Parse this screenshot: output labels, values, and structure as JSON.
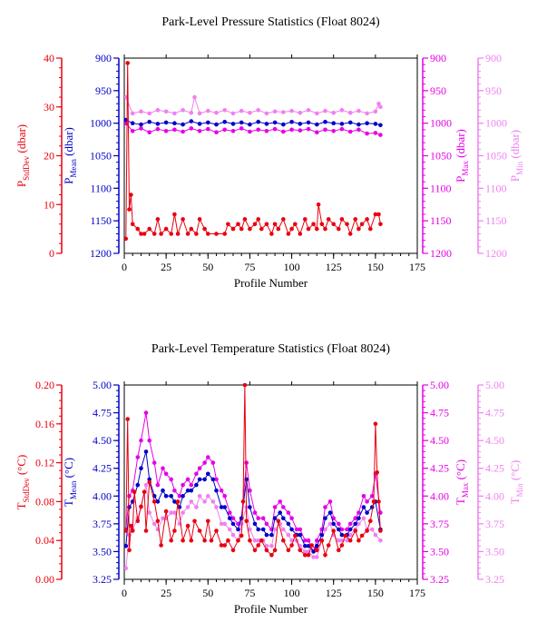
{
  "chart_data": [
    {
      "type": "line",
      "title": "Park-Level Pressure Statistics (Float 8024)",
      "xlabel": "Profile Number",
      "x_ticks": [
        "0",
        "25",
        "50",
        "75",
        "100",
        "125",
        "150",
        "175"
      ],
      "xlim": [
        0,
        175
      ],
      "axes": [
        {
          "key": "sd",
          "label_main": "P",
          "label_sub": "StdDev",
          "label_unit": " (dbar)",
          "color": "#e8000f",
          "ylim": [
            0,
            40
          ],
          "reversed": false,
          "ticks": [
            "0",
            "10",
            "20",
            "30",
            "40"
          ]
        },
        {
          "key": "mean",
          "label_main": "P",
          "label_sub": "Mean",
          "label_unit": " (dbar)",
          "color": "#0000c8",
          "ylim": [
            900,
            1200
          ],
          "reversed": true,
          "ticks": [
            "900",
            "950",
            "1000",
            "1050",
            "1100",
            "1150",
            "1200"
          ]
        },
        {
          "key": "max",
          "label_main": "P",
          "label_sub": "Max",
          "label_unit": " (dbar)",
          "color": "#e600e6",
          "ylim": [
            900,
            1200
          ],
          "reversed": true,
          "ticks": [
            "900",
            "950",
            "1000",
            "1050",
            "1100",
            "1150",
            "1200"
          ]
        },
        {
          "key": "min",
          "label_main": "P",
          "label_sub": "Min",
          "label_unit": " (dbar)",
          "color": "#f080f0",
          "ylim": [
            900,
            1200
          ],
          "reversed": true,
          "ticks": [
            "900",
            "950",
            "1000",
            "1050",
            "1100",
            "1150",
            "1200"
          ]
        }
      ],
      "series": [
        {
          "axis": "min",
          "color": "#f080f0",
          "x": [
            1,
            5,
            10,
            15,
            20,
            25,
            30,
            35,
            40,
            42,
            45,
            50,
            55,
            60,
            65,
            70,
            75,
            80,
            85,
            90,
            95,
            100,
            105,
            110,
            115,
            120,
            125,
            130,
            135,
            140,
            145,
            150,
            152,
            153
          ],
          "y": [
            960,
            985,
            982,
            985,
            980,
            982,
            985,
            980,
            984,
            960,
            985,
            981,
            984,
            980,
            985,
            981,
            984,
            980,
            985,
            982,
            983,
            981,
            984,
            980,
            985,
            981,
            984,
            980,
            984,
            981,
            985,
            982,
            970,
            975
          ]
        },
        {
          "axis": "max",
          "color": "#e600e6",
          "x": [
            1,
            5,
            10,
            15,
            20,
            25,
            30,
            35,
            40,
            45,
            50,
            55,
            60,
            65,
            70,
            75,
            80,
            85,
            90,
            95,
            100,
            105,
            110,
            115,
            120,
            125,
            130,
            135,
            140,
            145,
            150,
            153
          ],
          "y": [
            1000,
            1012,
            1008,
            1014,
            1009,
            1012,
            1010,
            1013,
            1008,
            1012,
            1009,
            1014,
            1010,
            1012,
            1008,
            1013,
            1010,
            1012,
            1009,
            1013,
            1010,
            1011,
            1009,
            1014,
            1010,
            1012,
            1009,
            1013,
            1010,
            1016,
            1015,
            1018
          ]
        },
        {
          "axis": "mean",
          "color": "#0000c8",
          "x": [
            1,
            5,
            10,
            15,
            20,
            25,
            30,
            35,
            40,
            45,
            50,
            55,
            60,
            65,
            70,
            75,
            80,
            85,
            90,
            95,
            100,
            105,
            110,
            115,
            120,
            125,
            130,
            135,
            140,
            145,
            150,
            153
          ],
          "y": [
            995,
            1000,
            1002,
            998,
            1001,
            999,
            1000,
            1002,
            997,
            1001,
            999,
            1002,
            998,
            1001,
            999,
            1002,
            998,
            1001,
            999,
            1002,
            998,
            1001,
            999,
            1002,
            998,
            1000,
            1001,
            999,
            1002,
            1000,
            1001,
            1003
          ]
        },
        {
          "axis": "sd",
          "color": "#e8000f",
          "x": [
            1,
            2,
            3,
            4,
            5,
            8,
            10,
            12,
            15,
            18,
            20,
            22,
            25,
            28,
            30,
            32,
            35,
            38,
            40,
            43,
            45,
            48,
            50,
            55,
            60,
            62,
            65,
            68,
            70,
            72,
            75,
            78,
            80,
            82,
            85,
            88,
            90,
            92,
            95,
            98,
            100,
            102,
            105,
            108,
            110,
            113,
            115,
            116,
            118,
            120,
            122,
            125,
            128,
            130,
            133,
            135,
            138,
            140,
            142,
            145,
            147,
            150,
            152,
            153
          ],
          "y": [
            3,
            39,
            9,
            12,
            6,
            5,
            4,
            4,
            5,
            4,
            7,
            4,
            5,
            4,
            8,
            4,
            7,
            4,
            5,
            4,
            7,
            5,
            4,
            4,
            4,
            6,
            5,
            6,
            5,
            7,
            5,
            6,
            7,
            5,
            6,
            4,
            6,
            5,
            7,
            4,
            5,
            6,
            4,
            7,
            5,
            6,
            5,
            10,
            6,
            5,
            7,
            6,
            5,
            7,
            6,
            4,
            7,
            5,
            6,
            7,
            5,
            8,
            8,
            6
          ]
        }
      ]
    },
    {
      "type": "line",
      "title": "Park-Level Temperature Statistics (Float 8024)",
      "xlabel": "Profile Number",
      "x_ticks": [
        "0",
        "25",
        "50",
        "75",
        "100",
        "125",
        "150",
        "175"
      ],
      "xlim": [
        0,
        175
      ],
      "axes": [
        {
          "key": "sd",
          "label_main": "T",
          "label_sub": "StdDev",
          "label_unit": " (°C)",
          "color": "#e8000f",
          "ylim": [
            0,
            0.2
          ],
          "reversed": false,
          "ticks": [
            "0.00",
            "0.04",
            "0.08",
            "0.12",
            "0.16",
            "0.20"
          ]
        },
        {
          "key": "mean",
          "label_main": "T",
          "label_sub": "Mean",
          "label_unit": " (°C)",
          "color": "#0000c8",
          "ylim": [
            3.25,
            5.0
          ],
          "reversed": false,
          "ticks": [
            "3.25",
            "3.50",
            "3.75",
            "4.00",
            "4.25",
            "4.50",
            "4.75",
            "5.00"
          ]
        },
        {
          "key": "max",
          "label_main": "T",
          "label_sub": "Max",
          "label_unit": " (°C)",
          "color": "#e600e6",
          "ylim": [
            3.25,
            5.0
          ],
          "reversed": false,
          "ticks": [
            "3.25",
            "3.50",
            "3.75",
            "4.00",
            "4.25",
            "4.50",
            "4.75",
            "5.00"
          ]
        },
        {
          "key": "min",
          "label_main": "T",
          "label_sub": "Min",
          "label_unit": " (°C)",
          "color": "#f080f0",
          "ylim": [
            3.25,
            5.0
          ],
          "reversed": false,
          "ticks": [
            "3.25",
            "3.50",
            "3.75",
            "4.00",
            "4.25",
            "4.50",
            "4.75",
            "5.00"
          ]
        }
      ],
      "series": [
        {
          "axis": "max",
          "color": "#e600e6",
          "x": [
            1,
            3,
            5,
            8,
            10,
            13,
            15,
            18,
            20,
            23,
            25,
            28,
            30,
            33,
            35,
            38,
            40,
            43,
            45,
            48,
            50,
            53,
            55,
            58,
            60,
            63,
            65,
            68,
            70,
            73,
            75,
            78,
            80,
            83,
            85,
            88,
            90,
            93,
            95,
            98,
            100,
            103,
            105,
            108,
            110,
            113,
            115,
            118,
            120,
            123,
            125,
            128,
            130,
            133,
            135,
            138,
            140,
            143,
            145,
            148,
            150,
            153
          ],
          "y": [
            3.7,
            4.0,
            4.05,
            4.35,
            4.5,
            4.75,
            4.5,
            4.3,
            4.1,
            4.25,
            4.2,
            4.15,
            4.05,
            4.0,
            4.1,
            4.15,
            4.1,
            4.2,
            4.25,
            4.3,
            4.35,
            4.3,
            4.15,
            4.05,
            4.0,
            3.85,
            3.8,
            3.75,
            3.8,
            4.3,
            4.05,
            3.85,
            3.8,
            3.8,
            3.75,
            3.7,
            3.9,
            3.95,
            3.9,
            3.85,
            3.8,
            3.7,
            3.7,
            3.6,
            3.6,
            3.5,
            3.6,
            3.7,
            3.9,
            3.95,
            3.8,
            3.75,
            3.7,
            3.7,
            3.75,
            3.8,
            3.85,
            4.0,
            3.95,
            4.0,
            4.2,
            3.85
          ]
        },
        {
          "axis": "min",
          "color": "#f080f0",
          "x": [
            1,
            3,
            5,
            8,
            10,
            13,
            15,
            18,
            20,
            23,
            25,
            28,
            30,
            33,
            35,
            38,
            40,
            43,
            45,
            48,
            50,
            53,
            55,
            58,
            60,
            63,
            65,
            68,
            70,
            73,
            75,
            78,
            80,
            83,
            85,
            88,
            90,
            93,
            95,
            98,
            100,
            103,
            105,
            108,
            110,
            113,
            115,
            118,
            120,
            123,
            125,
            128,
            130,
            133,
            135,
            138,
            140,
            143,
            145,
            148,
            150,
            153
          ],
          "y": [
            3.35,
            3.65,
            3.7,
            3.8,
            3.9,
            4.1,
            3.85,
            3.75,
            3.7,
            3.8,
            3.8,
            3.85,
            3.85,
            3.75,
            3.85,
            3.9,
            3.95,
            3.9,
            4.0,
            3.95,
            4.0,
            3.95,
            3.9,
            3.75,
            3.75,
            3.7,
            3.65,
            3.6,
            3.75,
            3.9,
            3.7,
            3.6,
            3.6,
            3.6,
            3.55,
            3.55,
            3.7,
            3.75,
            3.7,
            3.65,
            3.6,
            3.6,
            3.55,
            3.5,
            3.5,
            3.45,
            3.45,
            3.6,
            3.7,
            3.75,
            3.65,
            3.6,
            3.6,
            3.6,
            3.65,
            3.7,
            3.75,
            3.8,
            3.7,
            3.7,
            3.65,
            3.6
          ]
        },
        {
          "axis": "mean",
          "color": "#0000c8",
          "x": [
            1,
            3,
            5,
            8,
            10,
            13,
            15,
            18,
            20,
            23,
            25,
            28,
            30,
            33,
            35,
            38,
            40,
            43,
            45,
            48,
            50,
            53,
            55,
            58,
            60,
            63,
            65,
            68,
            70,
            73,
            75,
            78,
            80,
            83,
            85,
            88,
            90,
            93,
            95,
            98,
            100,
            103,
            105,
            108,
            110,
            113,
            115,
            118,
            120,
            123,
            125,
            128,
            130,
            133,
            135,
            138,
            140,
            143,
            145,
            148,
            150,
            153
          ],
          "y": [
            3.55,
            3.9,
            3.95,
            4.1,
            4.25,
            4.4,
            4.15,
            4.0,
            3.95,
            4.05,
            4.0,
            4.0,
            3.95,
            3.9,
            4.0,
            4.05,
            4.05,
            4.1,
            4.15,
            4.15,
            4.2,
            4.15,
            4.05,
            3.9,
            3.9,
            3.8,
            3.75,
            3.7,
            3.8,
            4.15,
            3.9,
            3.75,
            3.7,
            3.7,
            3.65,
            3.65,
            3.8,
            3.85,
            3.8,
            3.75,
            3.7,
            3.65,
            3.65,
            3.55,
            3.55,
            3.5,
            3.55,
            3.65,
            3.8,
            3.85,
            3.75,
            3.7,
            3.65,
            3.65,
            3.7,
            3.75,
            3.8,
            3.9,
            3.85,
            3.9,
            3.95,
            3.7
          ]
        },
        {
          "axis": "sd",
          "color": "#e8000f",
          "x": [
            1,
            2,
            3,
            4,
            5,
            6,
            8,
            10,
            12,
            13,
            15,
            18,
            20,
            22,
            25,
            28,
            30,
            32,
            35,
            38,
            40,
            42,
            45,
            48,
            50,
            52,
            55,
            58,
            60,
            62,
            65,
            68,
            70,
            71,
            72,
            73,
            75,
            78,
            80,
            82,
            85,
            88,
            90,
            92,
            95,
            98,
            100,
            102,
            105,
            108,
            110,
            112,
            115,
            118,
            120,
            122,
            125,
            128,
            130,
            132,
            135,
            138,
            140,
            142,
            145,
            147,
            149,
            150,
            151,
            152,
            153
          ],
          "y": [
            0.05,
            0.165,
            0.03,
            0.055,
            0.05,
            0.09,
            0.06,
            0.075,
            0.09,
            0.05,
            0.1,
            0.08,
            0.06,
            0.035,
            0.07,
            0.04,
            0.05,
            0.08,
            0.04,
            0.055,
            0.04,
            0.06,
            0.05,
            0.04,
            0.06,
            0.04,
            0.05,
            0.035,
            0.035,
            0.04,
            0.03,
            0.04,
            0.045,
            0.08,
            0.2,
            0.06,
            0.04,
            0.03,
            0.035,
            0.04,
            0.03,
            0.025,
            0.03,
            0.06,
            0.04,
            0.03,
            0.035,
            0.045,
            0.03,
            0.025,
            0.025,
            0.035,
            0.03,
            0.04,
            0.025,
            0.035,
            0.05,
            0.03,
            0.035,
            0.045,
            0.04,
            0.05,
            0.04,
            0.045,
            0.05,
            0.06,
            0.08,
            0.16,
            0.11,
            0.08,
            0.05
          ]
        }
      ]
    }
  ]
}
